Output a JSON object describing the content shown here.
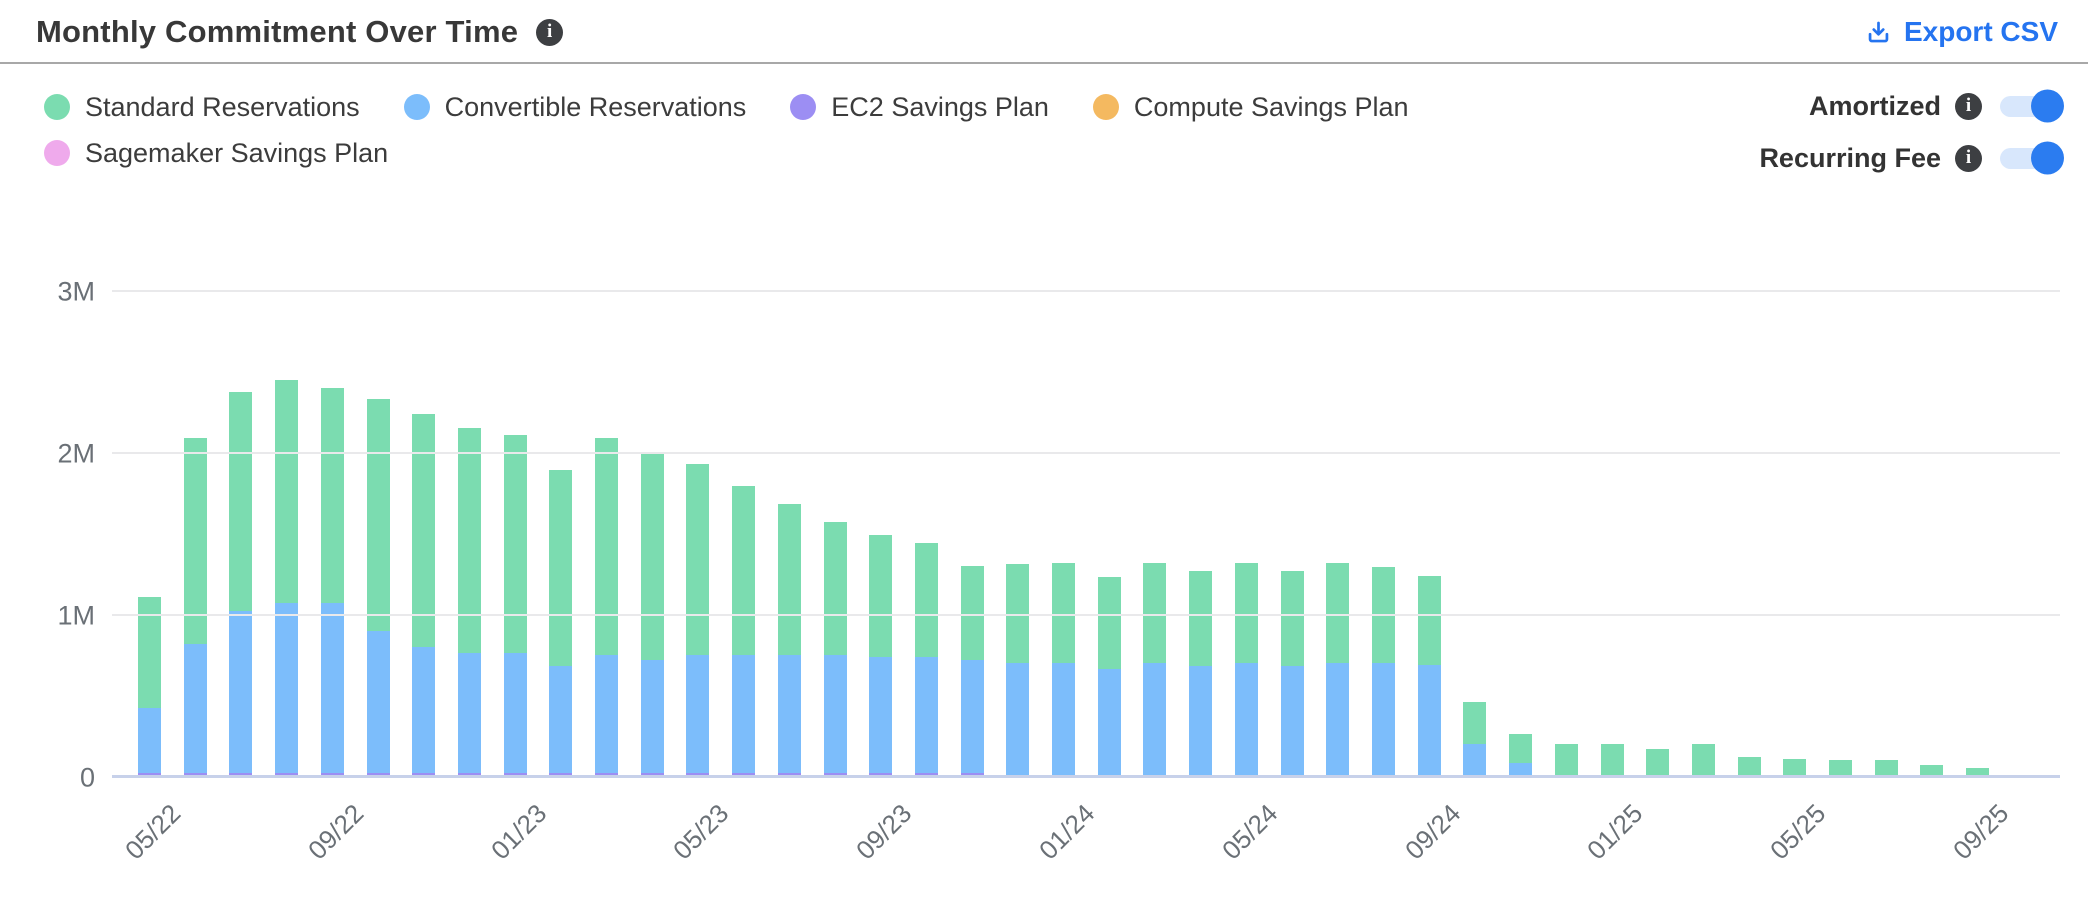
{
  "header": {
    "title": "Monthly Commitment Over Time",
    "export_label": "Export CSV"
  },
  "controls": {
    "toggles": [
      {
        "label": "Amortized",
        "state": "on"
      },
      {
        "label": "Recurring Fee",
        "state": "on"
      }
    ]
  },
  "colors": {
    "accent_blue": "#2574f0",
    "toggle_on": "#2b7cf0",
    "toggle_track": "#d8e7fc",
    "info_badge": "#3d3f42",
    "axis_text": "#6a7076",
    "gridline": "#e9e9eb",
    "zero_axis": "#c7d1ea"
  },
  "chart_data": {
    "type": "bar",
    "stacked": true,
    "title": "Monthly Commitment Over Time",
    "unit": "millions (M)",
    "ylim": [
      0,
      3000000
    ],
    "grid": "horizontal",
    "legend_position": "top-left",
    "yticks": [
      {
        "value": 0,
        "label": "0"
      },
      {
        "value": 1,
        "label": "1M"
      },
      {
        "value": 2,
        "label": "2M"
      },
      {
        "value": 3,
        "label": "3M"
      }
    ],
    "xtick_every": 4,
    "xtick_labels_shown": [
      "05/22",
      "09/22",
      "01/23",
      "05/23",
      "09/23",
      "01/24",
      "05/24",
      "09/24",
      "01/25",
      "05/25",
      "09/25"
    ],
    "categories": [
      "05/22",
      "06/22",
      "07/22",
      "08/22",
      "09/22",
      "10/22",
      "11/22",
      "12/22",
      "01/23",
      "02/23",
      "03/23",
      "04/23",
      "05/23",
      "06/23",
      "07/23",
      "08/23",
      "09/23",
      "10/23",
      "11/23",
      "12/23",
      "01/24",
      "02/24",
      "03/24",
      "04/24",
      "05/24",
      "06/24",
      "07/24",
      "08/24",
      "09/24",
      "10/24",
      "11/24",
      "12/24",
      "01/25",
      "02/25",
      "03/25",
      "04/25",
      "05/25",
      "06/25",
      "07/25",
      "08/25",
      "09/25",
      "10/25"
    ],
    "series": [
      {
        "name": "Standard Reservations",
        "color": "#7bdcb0",
        "values_millions": [
          0.69,
          1.27,
          1.35,
          1.38,
          1.33,
          1.43,
          1.44,
          1.39,
          1.35,
          1.21,
          1.34,
          1.28,
          1.18,
          1.04,
          0.93,
          0.82,
          0.75,
          0.7,
          0.58,
          0.61,
          0.62,
          0.57,
          0.62,
          0.59,
          0.62,
          0.59,
          0.62,
          0.59,
          0.55,
          0.26,
          0.18,
          0.21,
          0.21,
          0.18,
          0.21,
          0.13,
          0.12,
          0.11,
          0.11,
          0.08,
          0.06,
          0.02
        ]
      },
      {
        "name": "Convertible Reservations",
        "color": "#7cbdfb",
        "values_millions": [
          0.4,
          0.8,
          1.0,
          1.05,
          1.05,
          0.88,
          0.78,
          0.74,
          0.74,
          0.66,
          0.73,
          0.7,
          0.73,
          0.73,
          0.73,
          0.73,
          0.72,
          0.72,
          0.7,
          0.71,
          0.71,
          0.67,
          0.71,
          0.69,
          0.71,
          0.69,
          0.71,
          0.71,
          0.7,
          0.21,
          0.09,
          0,
          0,
          0,
          0,
          0,
          0,
          0,
          0,
          0,
          0,
          0
        ]
      },
      {
        "name": "EC2 Savings Plan",
        "color": "#9c8ef3",
        "values_millions": [
          0.02,
          0.02,
          0.02,
          0.02,
          0.02,
          0.02,
          0.02,
          0.02,
          0.02,
          0.02,
          0.02,
          0.02,
          0.02,
          0.02,
          0.02,
          0.02,
          0.02,
          0.02,
          0.02,
          0,
          0,
          0,
          0,
          0,
          0,
          0,
          0,
          0,
          0,
          0,
          0,
          0,
          0,
          0,
          0,
          0,
          0,
          0,
          0,
          0,
          0,
          0
        ]
      },
      {
        "name": "Compute Savings Plan",
        "color": "#f4b960",
        "values_millions": [
          0,
          0,
          0,
          0,
          0,
          0,
          0,
          0,
          0,
          0,
          0,
          0,
          0,
          0,
          0,
          0,
          0,
          0,
          0,
          0,
          0,
          0,
          0,
          0,
          0,
          0,
          0,
          0,
          0,
          0,
          0,
          0,
          0,
          0,
          0,
          0,
          0,
          0,
          0,
          0,
          0,
          0
        ]
      },
      {
        "name": "Sagemaker Savings Plan",
        "color": "#efaaec",
        "values_millions": [
          0.01,
          0.01,
          0.01,
          0.01,
          0.01,
          0.01,
          0.01,
          0.01,
          0.01,
          0.01,
          0.01,
          0.01,
          0.01,
          0.01,
          0.01,
          0.01,
          0.01,
          0.01,
          0.01,
          0,
          0,
          0,
          0,
          0,
          0,
          0,
          0,
          0,
          0,
          0,
          0,
          0,
          0,
          0,
          0,
          0,
          0,
          0,
          0,
          0,
          0,
          0
        ]
      }
    ]
  }
}
